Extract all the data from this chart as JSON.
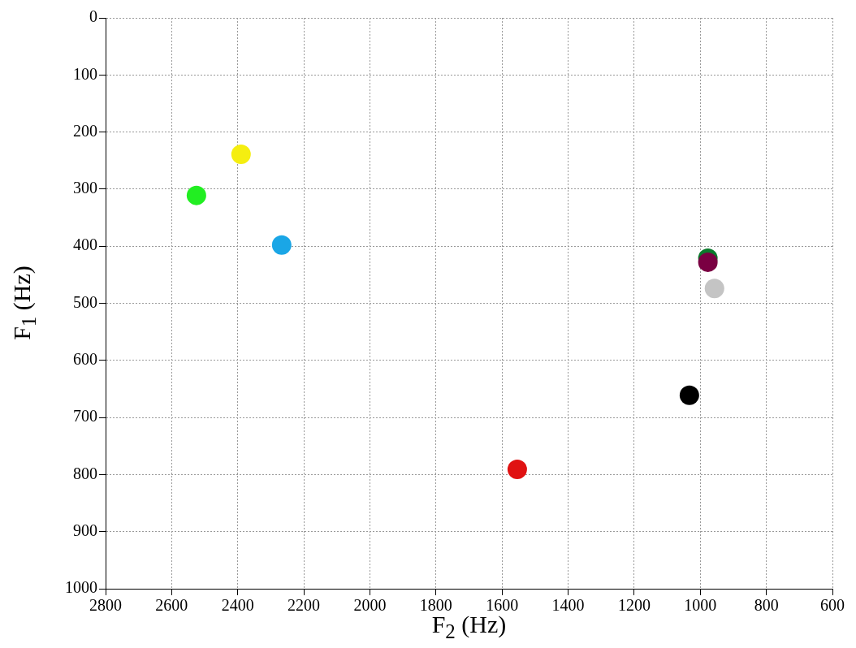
{
  "chart_data": {
    "type": "scatter",
    "xlabel": "F$_{2}$ (Hz)",
    "ylabel": "F$_{1}$ (Hz)",
    "x": [
      2525,
      2390,
      2267,
      977,
      977,
      957,
      1033,
      1554
    ],
    "values": [
      311,
      239,
      398,
      421,
      428,
      474,
      661,
      791
    ],
    "colors": [
      "#22ee22",
      "#f5ee10",
      "#1aa6e6",
      "#0b7a2c",
      "#7a0042",
      "#c4c4c4",
      "#000000",
      "#e01212"
    ],
    "xlim": [
      2800,
      600
    ],
    "xticks": [
      2800,
      2600,
      2400,
      2200,
      2000,
      1800,
      1600,
      1400,
      1200,
      1000,
      800,
      600
    ],
    "ylim": [
      1000,
      0
    ],
    "yticks": [
      0,
      100,
      200,
      300,
      400,
      500,
      600,
      700,
      800,
      900,
      1000
    ],
    "grid": true,
    "marker": "circle"
  }
}
